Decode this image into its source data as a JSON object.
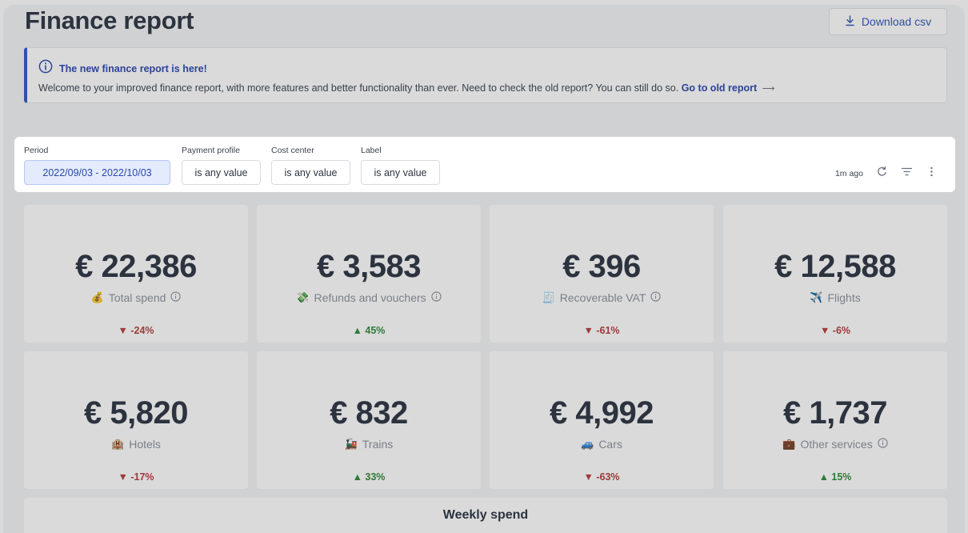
{
  "header": {
    "title": "Finance report",
    "download_label": "Download csv"
  },
  "banner": {
    "title": "The new finance report is here!",
    "body": "Welcome to your improved finance report, with more features and better functionality than ever. Need to check the old report? You can still do so.",
    "link": "Go to old report",
    "arrow": "⟶"
  },
  "filters": {
    "period": {
      "label": "Period",
      "value": "2022/09/03 - 2022/10/03"
    },
    "payment_profile": {
      "label": "Payment profile",
      "value": "is any value"
    },
    "cost_center": {
      "label": "Cost center",
      "value": "is any value"
    },
    "label": {
      "label": "Label",
      "value": "is any value"
    },
    "updated": "1m ago"
  },
  "cards": [
    {
      "value": "€ 22,386",
      "emoji": "💰",
      "label": "Total spend",
      "change": "▼ -24%"
    },
    {
      "value": "€ 3,583",
      "emoji": "💸",
      "label": "Refunds and vouchers",
      "change": "▲ 45%"
    },
    {
      "value": "€ 396",
      "emoji": "🧾",
      "label": "Recoverable VAT",
      "change": "▼ -61%"
    },
    {
      "value": "€ 12,588",
      "emoji": "✈️",
      "label": "Flights",
      "change": "▼ -6%"
    },
    {
      "value": "€ 5,820",
      "emoji": "🏨",
      "label": "Hotels",
      "change": "▼ -17%"
    },
    {
      "value": "€ 832",
      "emoji": "🚂",
      "label": "Trains",
      "change": "▲ 33%"
    },
    {
      "value": "€ 4,992",
      "emoji": "🚙",
      "label": "Cars",
      "change": "▼ -63%"
    },
    {
      "value": "€ 1,737",
      "emoji": "💼",
      "label": "Other services",
      "change": "▲ 15%"
    }
  ],
  "weekly": {
    "title": "Weekly spend"
  },
  "colors": {
    "accent": "#2f56b7",
    "negative": "#b23d3d",
    "positive": "#2f8a3a",
    "period_bg": "#e3ebfd"
  },
  "icons": [
    "download-icon",
    "info-icon",
    "refresh-icon",
    "filter-icon",
    "more-vertical-icon"
  ]
}
